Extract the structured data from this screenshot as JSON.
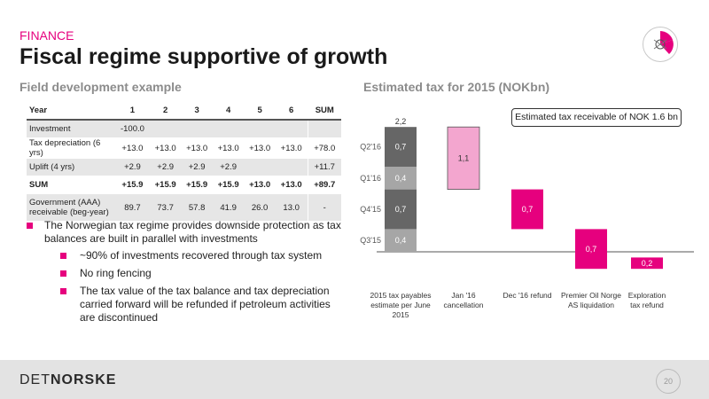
{
  "section": "FINANCE",
  "title": "Fiscal regime supportive of growth",
  "left_subtitle": "Field development example",
  "right_subtitle": "Estimated tax for 2015 (NOKbn)",
  "table": {
    "headers": [
      "Year",
      "1",
      "2",
      "3",
      "4",
      "5",
      "6",
      "SUM"
    ],
    "rows": [
      {
        "label": "Investment",
        "cells": [
          "-100.0",
          "",
          "",
          "",
          "",
          "",
          ""
        ],
        "style": "shade"
      },
      {
        "label": "Tax depreciation (6 yrs)",
        "cells": [
          "+13.0",
          "+13.0",
          "+13.0",
          "+13.0",
          "+13.0",
          "+13.0",
          "+78.0"
        ],
        "style": "plain"
      },
      {
        "label": "Uplift (4 yrs)",
        "cells": [
          "+2.9",
          "+2.9",
          "+2.9",
          "+2.9",
          "",
          "",
          "+11.7"
        ],
        "style": "shade"
      },
      {
        "label": "SUM",
        "cells": [
          "+15.9",
          "+15.9",
          "+15.9",
          "+15.9",
          "+13.0",
          "+13.0",
          "+89.7"
        ],
        "style": "bold"
      },
      {
        "label": "Government (AAA) receivable (beg-year)",
        "cells": [
          "89.7",
          "73.7",
          "57.8",
          "41.9",
          "26.0",
          "13.0",
          "-"
        ],
        "style": "shade tall"
      }
    ]
  },
  "bullets": {
    "main": "The Norwegian tax regime provides downside protection as tax balances are built in parallel with investments",
    "subs": [
      "~90% of investments recovered through tax system",
      "No ring fencing",
      "The tax value of the tax balance and tax depreciation carried forward will be refunded if petroleum activities are discontinued"
    ]
  },
  "callout": "Estimated tax receivable of NOK 1.6 bn",
  "footer": {
    "brand_light": "DET",
    "brand_bold": "NORSKE",
    "page": "20"
  },
  "colors": {
    "accent": "#e6007e",
    "gray_dark": "#666666",
    "gray_light": "#a6a6a6",
    "pink_light": "#f3a6cf"
  },
  "chart_data": {
    "type": "bar",
    "subtype": "waterfall",
    "categories": [
      "2015 tax payables estimate per June 2015",
      "Jan '16 cancellation",
      "Dec '16 refund",
      "Premier Oil Norge AS liquidation",
      "Exploration tax refund"
    ],
    "category_lines": [
      [
        "2015 tax payables",
        "estimate per June",
        "2015"
      ],
      [
        "Jan '16",
        "cancellation"
      ],
      [
        "Dec '16 refund"
      ],
      [
        "Premier Oil Norge",
        "AS  liquidation"
      ],
      [
        "Exploration",
        "tax refund"
      ]
    ],
    "stack": {
      "segments": [
        {
          "label": "Q3'15",
          "value": 0.4,
          "text": "0,4"
        },
        {
          "label": "Q4'15",
          "value": 0.7,
          "text": "0,7"
        },
        {
          "label": "Q1'16",
          "value": 0.4,
          "text": "0,4"
        },
        {
          "label": "Q2'16",
          "value": 0.7,
          "text": "0,7"
        }
      ],
      "total_text": "2,2"
    },
    "steps": [
      {
        "value": -1.1,
        "text": "1,1",
        "color": "#f3a6cf"
      },
      {
        "value": -0.7,
        "text": "0,7",
        "color": "#e6007e"
      },
      {
        "value": -0.7,
        "text": "0,7",
        "color": "#e6007e"
      },
      {
        "value": 0.2,
        "text": "0,2",
        "color": "#e6007e"
      }
    ],
    "ylim": [
      -0.38,
      2.2
    ]
  }
}
